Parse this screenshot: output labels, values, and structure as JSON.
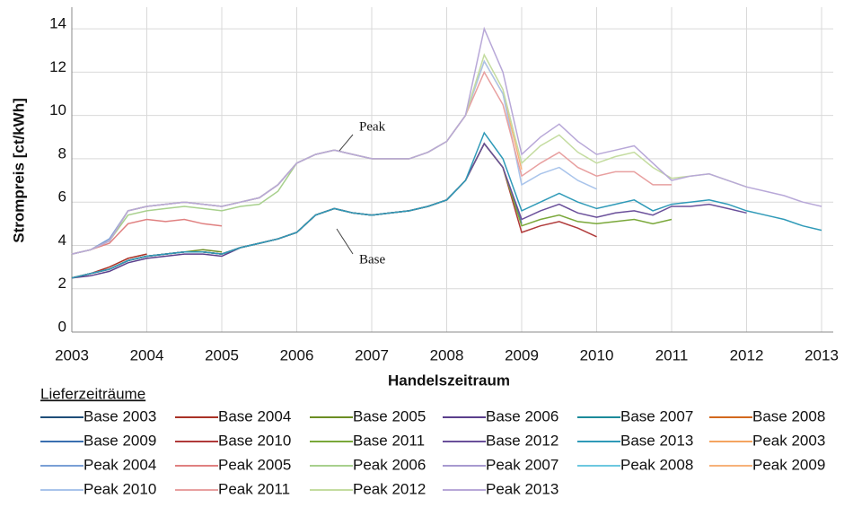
{
  "chart_data": {
    "type": "line",
    "ylabel": "Strompreis [ct/kWh]",
    "xlabel": "Handelszeitraum",
    "legend_title": "Lieferzeiträume",
    "annotations": [
      {
        "text": "Peak"
      },
      {
        "text": "Base"
      }
    ],
    "xlim": [
      2003,
      2013
    ],
    "xticks": [
      2003,
      2004,
      2005,
      2006,
      2007,
      2008,
      2009,
      2010,
      2011,
      2012,
      2013
    ],
    "ylim": [
      0,
      15
    ],
    "yticks": [
      0,
      2,
      4,
      6,
      8,
      10,
      12,
      14
    ],
    "grid": true,
    "x": [
      2003,
      2003.25,
      2003.5,
      2003.75,
      2004,
      2004.25,
      2004.5,
      2004.75,
      2005,
      2005.25,
      2005.5,
      2005.75,
      2006,
      2006.25,
      2006.5,
      2006.75,
      2007,
      2007.25,
      2007.5,
      2007.75,
      2008,
      2008.25,
      2008.5,
      2008.75,
      2009,
      2009.25,
      2009.5,
      2009.75,
      2010,
      2010.25,
      2010.5,
      2010.75,
      2011,
      2011.25,
      2011.5,
      2011.75,
      2012,
      2012.25,
      2012.5,
      2012.75,
      2013
    ],
    "series": [
      {
        "name": "Base 2003",
        "color": "#1f4e79",
        "values": [
          2.5,
          null,
          null,
          null,
          null,
          null,
          null,
          null,
          null,
          null,
          null,
          null,
          null,
          null,
          null,
          null,
          null,
          null,
          null,
          null,
          null,
          null,
          null,
          null,
          null,
          null,
          null,
          null,
          null,
          null,
          null,
          null,
          null,
          null,
          null,
          null,
          null,
          null,
          null,
          null,
          null
        ]
      },
      {
        "name": "Base 2004",
        "color": "#a93226",
        "values": [
          2.5,
          2.7,
          3.0,
          3.4,
          3.6,
          null,
          null,
          null,
          null,
          null,
          null,
          null,
          null,
          null,
          null,
          null,
          null,
          null,
          null,
          null,
          null,
          null,
          null,
          null,
          null,
          null,
          null,
          null,
          null,
          null,
          null,
          null,
          null,
          null,
          null,
          null,
          null,
          null,
          null,
          null,
          null
        ]
      },
      {
        "name": "Base 2005",
        "color": "#6b8e23",
        "values": [
          2.5,
          2.7,
          2.9,
          3.3,
          3.5,
          3.6,
          3.7,
          3.8,
          3.7,
          null,
          null,
          null,
          null,
          null,
          null,
          null,
          null,
          null,
          null,
          null,
          null,
          null,
          null,
          null,
          null,
          null,
          null,
          null,
          null,
          null,
          null,
          null,
          null,
          null,
          null,
          null,
          null,
          null,
          null,
          null,
          null
        ]
      },
      {
        "name": "Base 2006",
        "color": "#5b3f8c",
        "values": [
          2.5,
          2.6,
          2.8,
          3.2,
          3.4,
          3.5,
          3.6,
          3.6,
          3.5,
          3.9,
          4.1,
          4.3,
          4.6,
          null,
          null,
          null,
          null,
          null,
          null,
          null,
          null,
          null,
          null,
          null,
          null,
          null,
          null,
          null,
          null,
          null,
          null,
          null,
          null,
          null,
          null,
          null,
          null,
          null,
          null,
          null,
          null
        ]
      },
      {
        "name": "Base 2007",
        "color": "#1c8a9a",
        "values": [
          2.5,
          2.7,
          2.9,
          3.3,
          3.5,
          3.6,
          3.7,
          3.7,
          3.6,
          3.9,
          4.1,
          4.3,
          4.6,
          5.4,
          5.7,
          5.5,
          5.4,
          null,
          null,
          null,
          null,
          null,
          null,
          null,
          null,
          null,
          null,
          null,
          null,
          null,
          null,
          null,
          null,
          null,
          null,
          null,
          null,
          null,
          null,
          null,
          null
        ]
      },
      {
        "name": "Base 2008",
        "color": "#d2691e",
        "values": [
          2.5,
          2.7,
          2.9,
          3.3,
          3.5,
          3.6,
          3.7,
          3.7,
          3.6,
          3.9,
          4.1,
          4.3,
          4.6,
          5.4,
          5.7,
          5.5,
          5.4,
          5.5,
          5.6,
          5.8,
          6.1,
          null,
          null,
          null,
          null,
          null,
          null,
          null,
          null,
          null,
          null,
          null,
          null,
          null,
          null,
          null,
          null,
          null,
          null,
          null,
          null
        ]
      },
      {
        "name": "Base 2009",
        "color": "#3a6fb0",
        "values": [
          2.5,
          2.7,
          2.9,
          3.3,
          3.5,
          3.6,
          3.7,
          3.7,
          3.6,
          3.9,
          4.1,
          4.3,
          4.6,
          5.4,
          5.7,
          5.5,
          5.4,
          5.5,
          5.6,
          5.8,
          6.1,
          7.0,
          8.7,
          7.6,
          5.0,
          null,
          null,
          null,
          null,
          null,
          null,
          null,
          null,
          null,
          null,
          null,
          null,
          null,
          null,
          null,
          null
        ]
      },
      {
        "name": "Base 2010",
        "color": "#b03a3a",
        "values": [
          2.5,
          2.7,
          2.9,
          3.3,
          3.5,
          3.6,
          3.7,
          3.7,
          3.6,
          3.9,
          4.1,
          4.3,
          4.6,
          5.4,
          5.7,
          5.5,
          5.4,
          5.5,
          5.6,
          5.8,
          6.1,
          7.0,
          8.7,
          7.6,
          4.6,
          4.9,
          5.1,
          4.8,
          4.4,
          null,
          null,
          null,
          null,
          null,
          null,
          null,
          null,
          null,
          null,
          null,
          null
        ]
      },
      {
        "name": "Base 2011",
        "color": "#7aa83a",
        "values": [
          2.5,
          2.7,
          2.9,
          3.3,
          3.5,
          3.6,
          3.7,
          3.7,
          3.6,
          3.9,
          4.1,
          4.3,
          4.6,
          5.4,
          5.7,
          5.5,
          5.4,
          5.5,
          5.6,
          5.8,
          6.1,
          7.0,
          8.7,
          7.6,
          4.9,
          5.2,
          5.4,
          5.1,
          5.0,
          5.1,
          5.2,
          5.0,
          5.2,
          null,
          null,
          null,
          null,
          null,
          null,
          null,
          null
        ]
      },
      {
        "name": "Base 2012",
        "color": "#6a4f9a",
        "values": [
          2.5,
          2.7,
          2.9,
          3.3,
          3.5,
          3.6,
          3.7,
          3.7,
          3.6,
          3.9,
          4.1,
          4.3,
          4.6,
          5.4,
          5.7,
          5.5,
          5.4,
          5.5,
          5.6,
          5.8,
          6.1,
          7.0,
          8.7,
          7.6,
          5.2,
          5.6,
          5.9,
          5.5,
          5.3,
          5.5,
          5.6,
          5.4,
          5.8,
          5.8,
          5.9,
          5.7,
          5.5,
          null,
          null,
          null,
          null
        ]
      },
      {
        "name": "Base 2013",
        "color": "#2f9ab8",
        "values": [
          2.5,
          2.7,
          2.9,
          3.3,
          3.5,
          3.6,
          3.7,
          3.7,
          3.6,
          3.9,
          4.1,
          4.3,
          4.6,
          5.4,
          5.7,
          5.5,
          5.4,
          5.5,
          5.6,
          5.8,
          6.1,
          7.0,
          9.2,
          8.0,
          5.6,
          6.0,
          6.4,
          6.0,
          5.7,
          5.9,
          6.1,
          5.6,
          5.9,
          6.0,
          6.1,
          5.9,
          5.6,
          5.4,
          5.2,
          4.9,
          4.7
        ]
      },
      {
        "name": "Peak 2003",
        "color": "#f4a460",
        "values": [
          3.6,
          null,
          null,
          null,
          null,
          null,
          null,
          null,
          null,
          null,
          null,
          null,
          null,
          null,
          null,
          null,
          null,
          null,
          null,
          null,
          null,
          null,
          null,
          null,
          null,
          null,
          null,
          null,
          null,
          null,
          null,
          null,
          null,
          null,
          null,
          null,
          null,
          null,
          null,
          null,
          null
        ]
      },
      {
        "name": "Peak 2004",
        "color": "#7a9fd6",
        "values": [
          3.6,
          3.8,
          4.3,
          5.6,
          5.8,
          null,
          null,
          null,
          null,
          null,
          null,
          null,
          null,
          null,
          null,
          null,
          null,
          null,
          null,
          null,
          null,
          null,
          null,
          null,
          null,
          null,
          null,
          null,
          null,
          null,
          null,
          null,
          null,
          null,
          null,
          null,
          null,
          null,
          null,
          null,
          null
        ]
      },
      {
        "name": "Peak 2005",
        "color": "#e08080",
        "values": [
          3.6,
          3.8,
          4.1,
          5.0,
          5.2,
          5.1,
          5.2,
          5.0,
          4.9,
          null,
          null,
          null,
          null,
          null,
          null,
          null,
          null,
          null,
          null,
          null,
          null,
          null,
          null,
          null,
          null,
          null,
          null,
          null,
          null,
          null,
          null,
          null,
          null,
          null,
          null,
          null,
          null,
          null,
          null,
          null,
          null
        ]
      },
      {
        "name": "Peak 2006",
        "color": "#a8d08d",
        "values": [
          3.6,
          3.8,
          4.2,
          5.4,
          5.6,
          5.7,
          5.8,
          5.7,
          5.6,
          5.8,
          5.9,
          6.5,
          7.8,
          null,
          null,
          null,
          null,
          null,
          null,
          null,
          null,
          null,
          null,
          null,
          null,
          null,
          null,
          null,
          null,
          null,
          null,
          null,
          null,
          null,
          null,
          null,
          null,
          null,
          null,
          null,
          null
        ]
      },
      {
        "name": "Peak 2007",
        "color": "#a89ad0",
        "values": [
          3.6,
          3.8,
          4.2,
          5.6,
          5.8,
          5.9,
          6.0,
          5.9,
          5.8,
          6.0,
          6.2,
          6.8,
          7.8,
          8.2,
          8.4,
          8.2,
          8.0,
          null,
          null,
          null,
          null,
          null,
          null,
          null,
          null,
          null,
          null,
          null,
          null,
          null,
          null,
          null,
          null,
          null,
          null,
          null,
          null,
          null,
          null,
          null,
          null
        ]
      },
      {
        "name": "Peak 2008",
        "color": "#6dc8e0",
        "values": [
          3.6,
          3.8,
          4.2,
          5.6,
          5.8,
          5.9,
          6.0,
          5.9,
          5.8,
          6.0,
          6.2,
          6.8,
          7.8,
          8.2,
          8.4,
          8.2,
          8.0,
          8.0,
          8.0,
          8.3,
          8.8,
          null,
          null,
          null,
          null,
          null,
          null,
          null,
          null,
          null,
          null,
          null,
          null,
          null,
          null,
          null,
          null,
          null,
          null,
          null,
          null
        ]
      },
      {
        "name": "Peak 2009",
        "color": "#f7b27a",
        "values": [
          3.6,
          3.8,
          4.2,
          5.6,
          5.8,
          5.9,
          6.0,
          5.9,
          5.8,
          6.0,
          6.2,
          6.8,
          7.8,
          8.2,
          8.4,
          8.2,
          8.0,
          8.0,
          8.0,
          8.3,
          8.8,
          10.0,
          12.5,
          11.0,
          7.5,
          null,
          null,
          null,
          null,
          null,
          null,
          null,
          null,
          null,
          null,
          null,
          null,
          null,
          null,
          null,
          null
        ]
      },
      {
        "name": "Peak 2010",
        "color": "#a9c4eb",
        "values": [
          3.6,
          3.8,
          4.2,
          5.6,
          5.8,
          5.9,
          6.0,
          5.9,
          5.8,
          6.0,
          6.2,
          6.8,
          7.8,
          8.2,
          8.4,
          8.2,
          8.0,
          8.0,
          8.0,
          8.3,
          8.8,
          10.0,
          12.5,
          11.0,
          6.8,
          7.3,
          7.6,
          7.0,
          6.6,
          null,
          null,
          null,
          null,
          null,
          null,
          null,
          null,
          null,
          null,
          null,
          null
        ]
      },
      {
        "name": "Peak 2011",
        "color": "#e8a0a0",
        "values": [
          3.6,
          3.8,
          4.2,
          5.6,
          5.8,
          5.9,
          6.0,
          5.9,
          5.8,
          6.0,
          6.2,
          6.8,
          7.8,
          8.2,
          8.4,
          8.2,
          8.0,
          8.0,
          8.0,
          8.3,
          8.8,
          10.0,
          12.0,
          10.5,
          7.2,
          7.8,
          8.3,
          7.6,
          7.2,
          7.4,
          7.4,
          6.8,
          6.8,
          null,
          null,
          null,
          null,
          null,
          null,
          null,
          null
        ]
      },
      {
        "name": "Peak 2012",
        "color": "#c4dca0",
        "values": [
          3.6,
          3.8,
          4.2,
          5.6,
          5.8,
          5.9,
          6.0,
          5.9,
          5.8,
          6.0,
          6.2,
          6.8,
          7.8,
          8.2,
          8.4,
          8.2,
          8.0,
          8.0,
          8.0,
          8.3,
          8.8,
          10.0,
          12.8,
          11.2,
          7.8,
          8.6,
          9.1,
          8.3,
          7.8,
          8.1,
          8.3,
          7.6,
          7.1,
          7.2,
          7.3,
          7.0,
          6.7,
          null,
          null,
          null,
          null
        ]
      },
      {
        "name": "Peak 2013",
        "color": "#b8a8d8",
        "values": [
          3.6,
          3.8,
          4.2,
          5.6,
          5.8,
          5.9,
          6.0,
          5.9,
          5.8,
          6.0,
          6.2,
          6.8,
          7.8,
          8.2,
          8.4,
          8.2,
          8.0,
          8.0,
          8.0,
          8.3,
          8.8,
          10.0,
          14.0,
          12.0,
          8.2,
          9.0,
          9.6,
          8.8,
          8.2,
          8.4,
          8.6,
          7.8,
          7.0,
          7.2,
          7.3,
          7.0,
          6.7,
          6.5,
          6.3,
          6.0,
          5.8
        ]
      }
    ]
  }
}
